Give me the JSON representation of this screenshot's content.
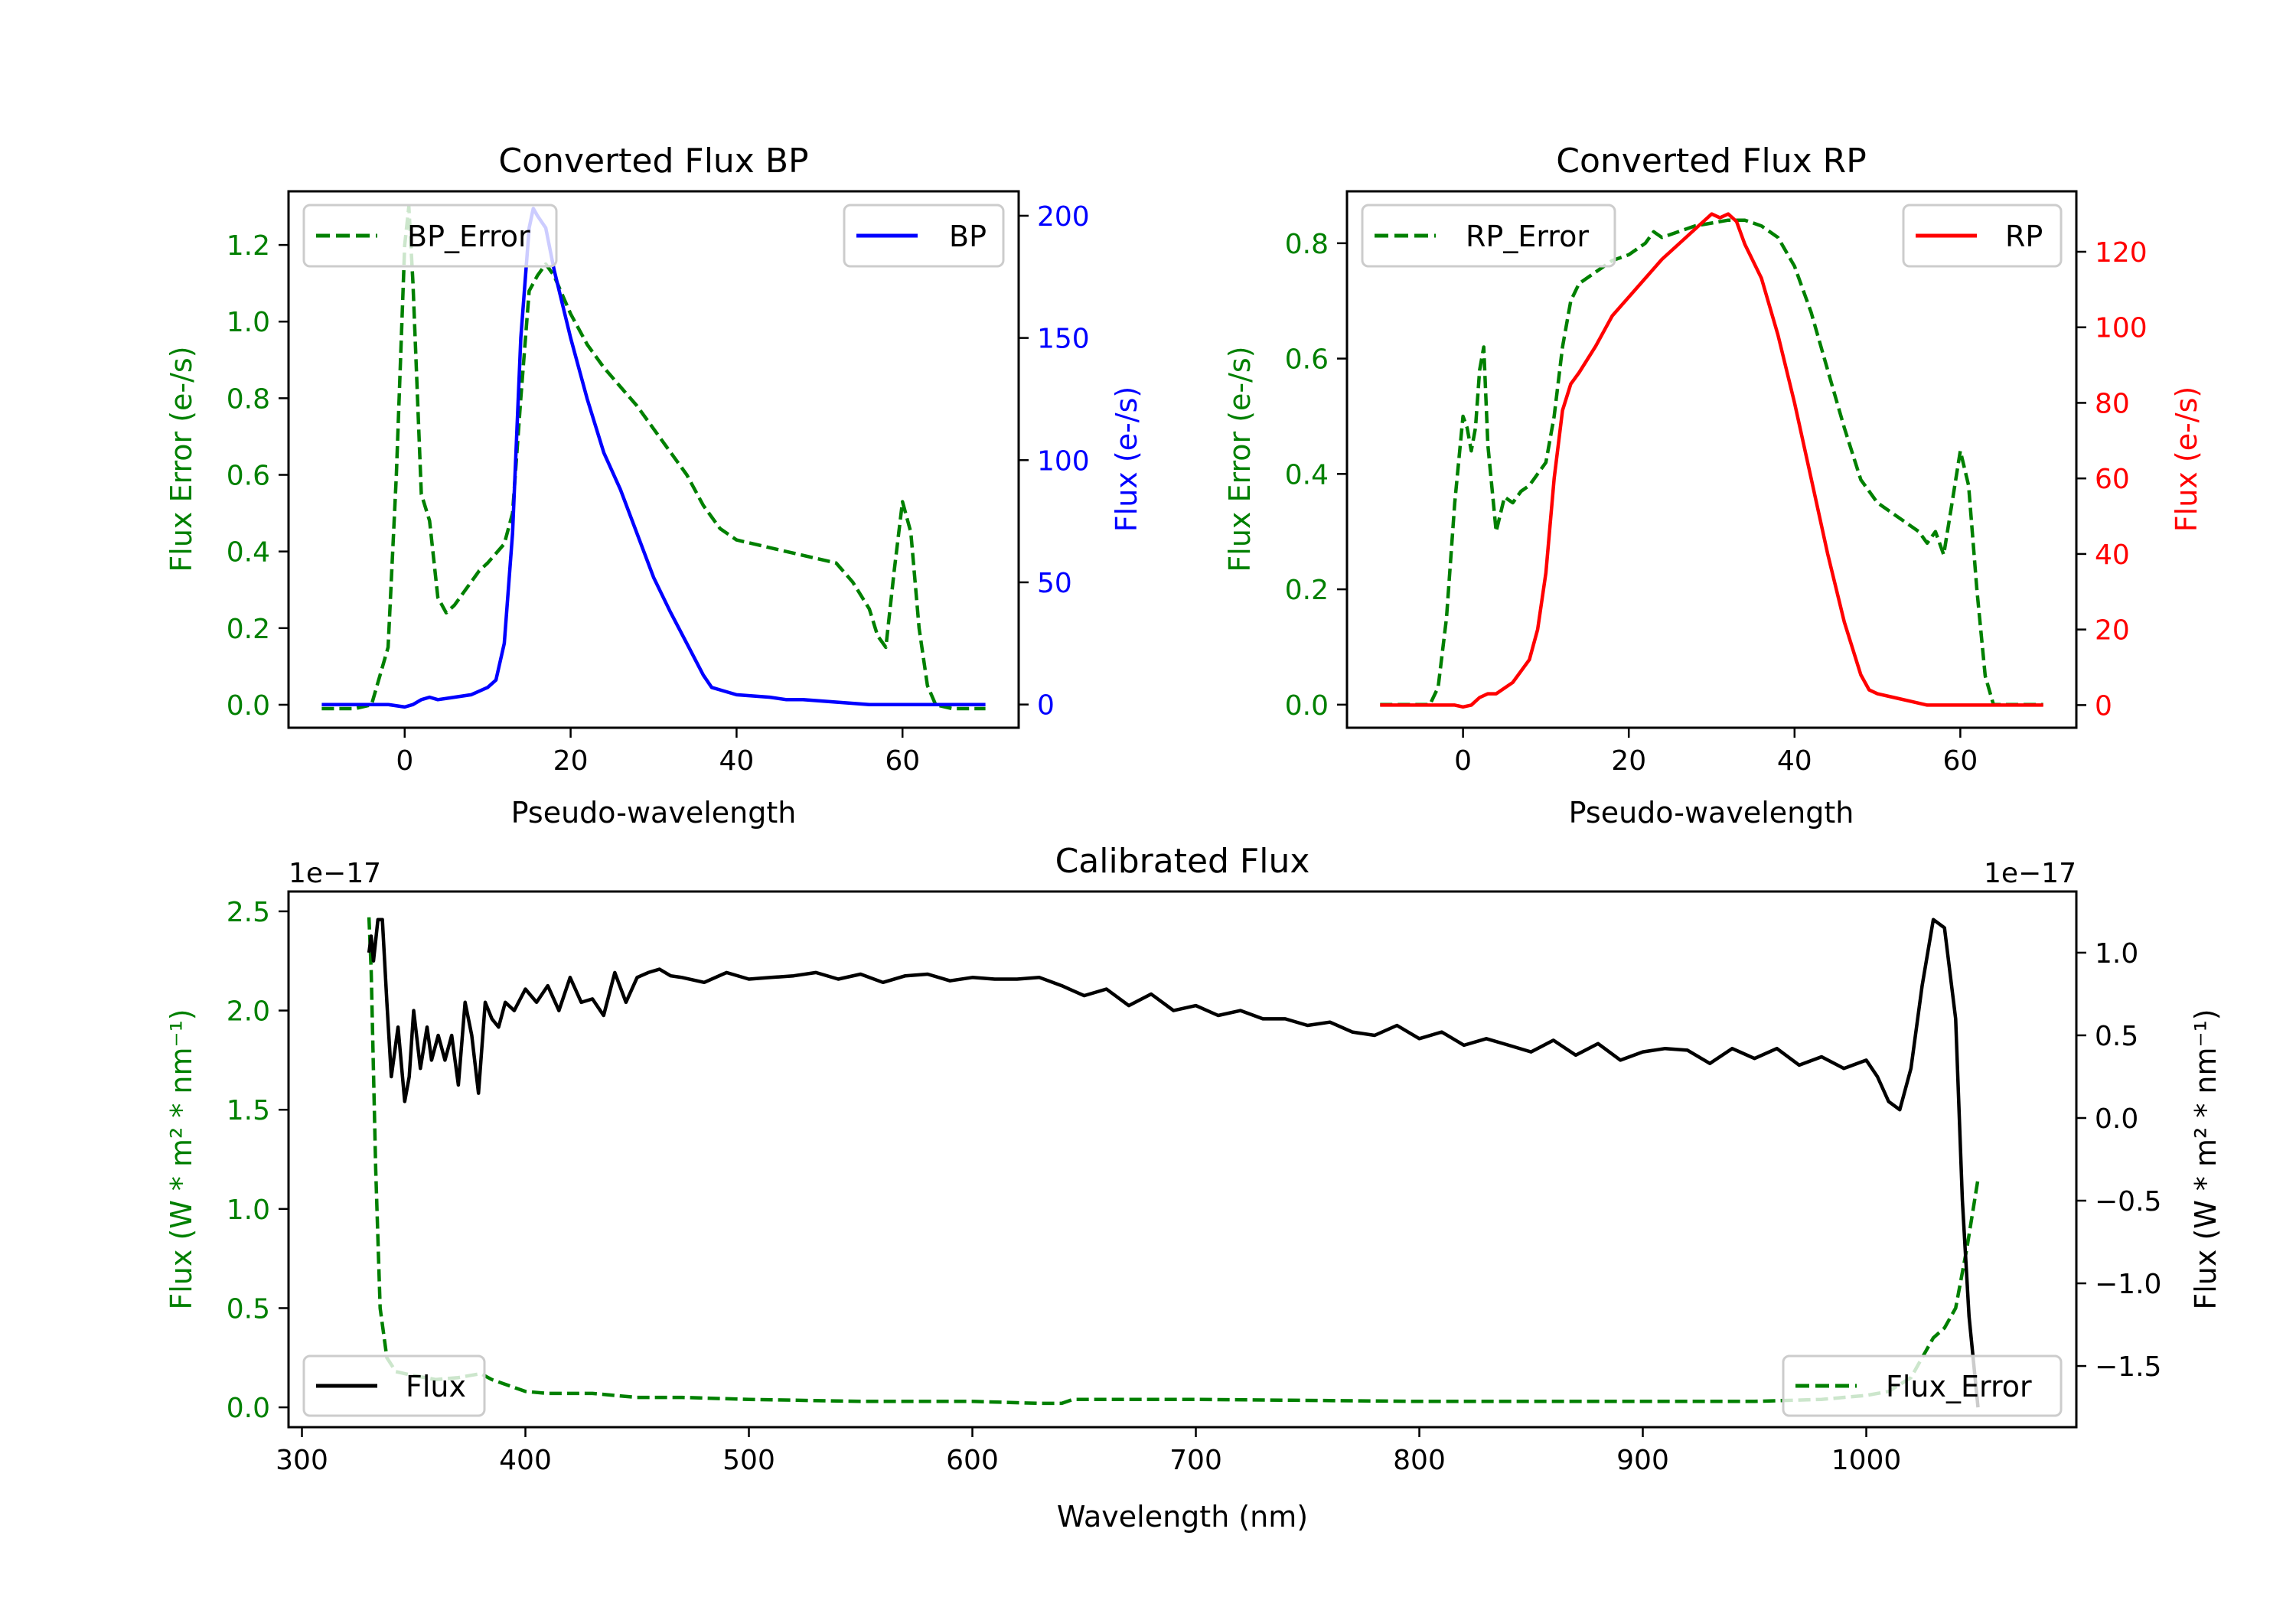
{
  "chart_data": [
    {
      "id": "bp",
      "type": "line",
      "title": "Converted Flux BP",
      "xlabel": "Pseudo-wavelength",
      "ylabel_left": "Flux Error (e-/s)",
      "ylabel_right": "Flux (e-/s)",
      "xlim": [
        -14,
        74
      ],
      "ylim_left": [
        -0.06,
        1.34
      ],
      "ylim_right": [
        -9.5,
        210
      ],
      "xticks": [
        0,
        20,
        40,
        60
      ],
      "yticks_left": [
        0.0,
        0.2,
        0.4,
        0.6,
        0.8,
        1.0,
        1.2
      ],
      "yticks_right": [
        0,
        50,
        100,
        150,
        200
      ],
      "grid": false,
      "legend_left": {
        "label": "BP_Error",
        "position": "top-left"
      },
      "legend_right": {
        "label": "BP",
        "position": "top-right"
      },
      "colors": {
        "left_axis": "#008000",
        "right_axis": "#0000ff",
        "error": "#008000",
        "flux": "#0000ff"
      },
      "series": [
        {
          "name": "BP_Error",
          "axis": "left",
          "style": "dashed",
          "color": "#008000",
          "x": [
            -10,
            -6,
            -4,
            -2,
            -1,
            0,
            0.5,
            1,
            2,
            3,
            4,
            5,
            6,
            8,
            9,
            10,
            12,
            13,
            14,
            15,
            16,
            17,
            18,
            20,
            22,
            24,
            26,
            28,
            30,
            32,
            34,
            36,
            38,
            40,
            44,
            48,
            50,
            52,
            54,
            56,
            57,
            58,
            59,
            60,
            61,
            62,
            63,
            64,
            66,
            70
          ],
          "y": [
            -0.01,
            -0.01,
            0.0,
            0.15,
            0.6,
            1.2,
            1.3,
            1.1,
            0.55,
            0.48,
            0.28,
            0.24,
            0.26,
            0.32,
            0.35,
            0.37,
            0.42,
            0.5,
            0.8,
            1.08,
            1.12,
            1.15,
            1.12,
            1.02,
            0.94,
            0.88,
            0.83,
            0.78,
            0.72,
            0.66,
            0.6,
            0.52,
            0.46,
            0.43,
            0.41,
            0.39,
            0.38,
            0.37,
            0.32,
            0.25,
            0.18,
            0.15,
            0.35,
            0.53,
            0.45,
            0.2,
            0.05,
            0.0,
            -0.01,
            -0.01
          ]
        },
        {
          "name": "BP",
          "axis": "right",
          "style": "solid",
          "color": "#0000ff",
          "x": [
            -10,
            -6,
            -2,
            0,
            1,
            2,
            3,
            4,
            6,
            8,
            10,
            11,
            12,
            13,
            14,
            15,
            15.5,
            16,
            17,
            18,
            20,
            22,
            24,
            26,
            28,
            30,
            32,
            34,
            36,
            37,
            38,
            40,
            44,
            46,
            48,
            52,
            56,
            60,
            64,
            70
          ],
          "y": [
            0,
            0,
            0,
            -1,
            0,
            2,
            3,
            2,
            3,
            4,
            7,
            10,
            25,
            70,
            150,
            195,
            203,
            200,
            195,
            178,
            150,
            125,
            103,
            88,
            70,
            52,
            38,
            25,
            12,
            7,
            6,
            4,
            3,
            2,
            2,
            1,
            0,
            0,
            0,
            0
          ]
        }
      ]
    },
    {
      "id": "rp",
      "type": "line",
      "title": "Converted Flux RP",
      "xlabel": "Pseudo-wavelength",
      "ylabel_left": "Flux Error (e-/s)",
      "ylabel_right": "Flux (e-/s)",
      "xlim": [
        -14,
        74
      ],
      "ylim_left": [
        -0.04,
        0.89
      ],
      "ylim_right": [
        -6,
        136
      ],
      "xticks": [
        0,
        20,
        40,
        60
      ],
      "yticks_left": [
        0.0,
        0.2,
        0.4,
        0.6,
        0.8
      ],
      "yticks_right": [
        0,
        20,
        40,
        60,
        80,
        100,
        120
      ],
      "grid": false,
      "legend_left": {
        "label": "RP_Error",
        "position": "top-left"
      },
      "legend_right": {
        "label": "RP",
        "position": "top-right"
      },
      "colors": {
        "left_axis": "#008000",
        "right_axis": "#ff0000",
        "error": "#008000",
        "flux": "#ff0000"
      },
      "series": [
        {
          "name": "RP_Error",
          "axis": "left",
          "style": "dashed",
          "color": "#008000",
          "x": [
            -10,
            -6,
            -4,
            -3,
            -2,
            -1,
            0,
            0.5,
            1,
            1.5,
            2,
            2.5,
            3,
            4,
            5,
            6,
            7,
            8,
            10,
            11,
            12,
            13,
            14,
            16,
            18,
            20,
            22,
            23,
            24,
            26,
            28,
            30,
            32,
            34,
            36,
            38,
            40,
            42,
            44,
            46,
            48,
            50,
            52,
            54,
            55,
            56,
            57,
            58,
            59,
            60,
            61,
            62,
            63,
            64,
            66,
            70
          ],
          "y": [
            0.0,
            0.0,
            0.0,
            0.03,
            0.15,
            0.35,
            0.5,
            0.48,
            0.44,
            0.48,
            0.58,
            0.62,
            0.45,
            0.3,
            0.36,
            0.35,
            0.37,
            0.38,
            0.42,
            0.5,
            0.62,
            0.7,
            0.73,
            0.75,
            0.77,
            0.78,
            0.8,
            0.82,
            0.81,
            0.82,
            0.83,
            0.835,
            0.84,
            0.84,
            0.83,
            0.81,
            0.76,
            0.68,
            0.58,
            0.48,
            0.39,
            0.35,
            0.33,
            0.31,
            0.3,
            0.28,
            0.3,
            0.26,
            0.35,
            0.44,
            0.38,
            0.2,
            0.05,
            0.0,
            0.0,
            0.0
          ]
        },
        {
          "name": "RP",
          "axis": "right",
          "style": "solid",
          "color": "#ff0000",
          "x": [
            -10,
            -4,
            -1,
            0,
            1,
            2,
            3,
            4,
            6,
            8,
            9,
            10,
            11,
            12,
            13,
            14,
            16,
            18,
            20,
            22,
            24,
            26,
            28,
            30,
            31,
            32,
            33,
            34,
            36,
            38,
            40,
            42,
            44,
            46,
            48,
            49,
            50,
            52,
            54,
            56,
            58,
            60,
            64,
            70
          ],
          "y": [
            0,
            0,
            0,
            -0.5,
            0,
            2,
            3,
            3,
            6,
            12,
            20,
            35,
            60,
            78,
            85,
            88,
            95,
            103,
            108,
            113,
            118,
            122,
            126,
            130,
            129,
            130,
            128,
            122,
            113,
            98,
            80,
            60,
            40,
            22,
            8,
            4,
            3,
            2,
            1,
            0,
            0,
            0,
            0,
            0
          ]
        }
      ]
    },
    {
      "id": "calibrated",
      "type": "line",
      "title": "Calibrated Flux",
      "xlabel": "Wavelength (nm)",
      "ylabel_left": "Flux (W * m² * nm⁻¹)",
      "ylabel_right": "Flux (W * m² * nm⁻¹)",
      "offset_left": "1e−17",
      "offset_right": "1e−17",
      "xlim": [
        294,
        1094
      ],
      "ylim_left": [
        -0.1,
        2.6
      ],
      "ylim_right": [
        -1.87,
        1.37
      ],
      "xticks": [
        300,
        400,
        500,
        600,
        700,
        800,
        900,
        1000
      ],
      "yticks_left": [
        0.0,
        0.5,
        1.0,
        1.5,
        2.0,
        2.5
      ],
      "yticks_left_labels": [
        "0.0",
        "0.5",
        "1.0",
        "1.5",
        "2.0",
        "2.5"
      ],
      "yticks_right": [
        -1.5,
        -1.0,
        -0.5,
        0.0,
        0.5,
        1.0
      ],
      "yticks_right_labels": [
        "−1.5",
        "−1.0",
        "−0.5",
        "0.0",
        "0.5",
        "1.0"
      ],
      "grid": false,
      "legend_left": {
        "label": "Flux",
        "position": "bottom-left"
      },
      "legend_right": {
        "label": "Flux_Error",
        "position": "bottom-right"
      },
      "colors": {
        "left_axis": "#008000",
        "right_axis": "#000000",
        "error": "#008000",
        "flux": "#000000"
      },
      "series": [
        {
          "name": "Flux_Error",
          "axis": "left",
          "style": "dashed",
          "color": "#008000",
          "x": [
            330,
            331,
            333,
            335,
            338,
            342,
            350,
            360,
            370,
            380,
            385,
            390,
            400,
            410,
            420,
            430,
            440,
            450,
            470,
            500,
            550,
            600,
            630,
            640,
            645,
            700,
            800,
            900,
            950,
            980,
            1000,
            1010,
            1020,
            1030,
            1035,
            1040,
            1045,
            1050
          ],
          "y": [
            2.47,
            2.2,
            1.2,
            0.5,
            0.25,
            0.18,
            0.16,
            0.14,
            0.15,
            0.17,
            0.14,
            0.12,
            0.08,
            0.07,
            0.07,
            0.07,
            0.06,
            0.05,
            0.05,
            0.04,
            0.03,
            0.03,
            0.02,
            0.02,
            0.04,
            0.04,
            0.03,
            0.03,
            0.03,
            0.04,
            0.06,
            0.08,
            0.15,
            0.35,
            0.4,
            0.5,
            0.8,
            1.15
          ]
        },
        {
          "name": "Flux",
          "axis": "right",
          "style": "solid",
          "color": "#000000",
          "x": [
            330,
            331,
            332,
            334,
            336,
            338,
            340,
            343,
            346,
            348,
            350,
            353,
            356,
            358,
            361,
            364,
            367,
            370,
            373,
            376,
            379,
            382,
            385,
            388,
            391,
            395,
            400,
            405,
            410,
            415,
            420,
            425,
            430,
            435,
            440,
            445,
            450,
            455,
            460,
            465,
            470,
            480,
            490,
            500,
            510,
            520,
            530,
            540,
            550,
            560,
            570,
            580,
            590,
            600,
            610,
            620,
            630,
            640,
            650,
            660,
            670,
            680,
            690,
            700,
            710,
            720,
            730,
            740,
            750,
            760,
            770,
            780,
            790,
            800,
            810,
            820,
            830,
            840,
            850,
            860,
            870,
            880,
            890,
            900,
            910,
            920,
            930,
            940,
            950,
            960,
            970,
            980,
            990,
            1000,
            1005,
            1010,
            1015,
            1020,
            1025,
            1030,
            1035,
            1040,
            1043,
            1046,
            1050
          ],
          "y": [
            1.0,
            1.1,
            0.95,
            1.2,
            1.2,
            0.7,
            0.25,
            0.55,
            0.1,
            0.25,
            0.65,
            0.3,
            0.55,
            0.35,
            0.5,
            0.35,
            0.5,
            0.2,
            0.7,
            0.5,
            0.15,
            0.7,
            0.6,
            0.55,
            0.7,
            0.65,
            0.78,
            0.7,
            0.8,
            0.65,
            0.85,
            0.7,
            0.72,
            0.62,
            0.88,
            0.7,
            0.85,
            0.88,
            0.9,
            0.86,
            0.85,
            0.82,
            0.88,
            0.84,
            0.85,
            0.86,
            0.88,
            0.84,
            0.87,
            0.82,
            0.86,
            0.87,
            0.83,
            0.85,
            0.84,
            0.84,
            0.85,
            0.8,
            0.74,
            0.78,
            0.68,
            0.75,
            0.65,
            0.68,
            0.62,
            0.65,
            0.6,
            0.6,
            0.56,
            0.58,
            0.52,
            0.5,
            0.56,
            0.48,
            0.52,
            0.44,
            0.48,
            0.44,
            0.4,
            0.47,
            0.38,
            0.45,
            0.35,
            0.4,
            0.42,
            0.41,
            0.33,
            0.42,
            0.36,
            0.42,
            0.32,
            0.37,
            0.3,
            0.35,
            0.25,
            0.1,
            0.05,
            0.3,
            0.8,
            1.2,
            1.15,
            0.6,
            -0.5,
            -1.2,
            -1.75
          ]
        }
      ]
    }
  ]
}
